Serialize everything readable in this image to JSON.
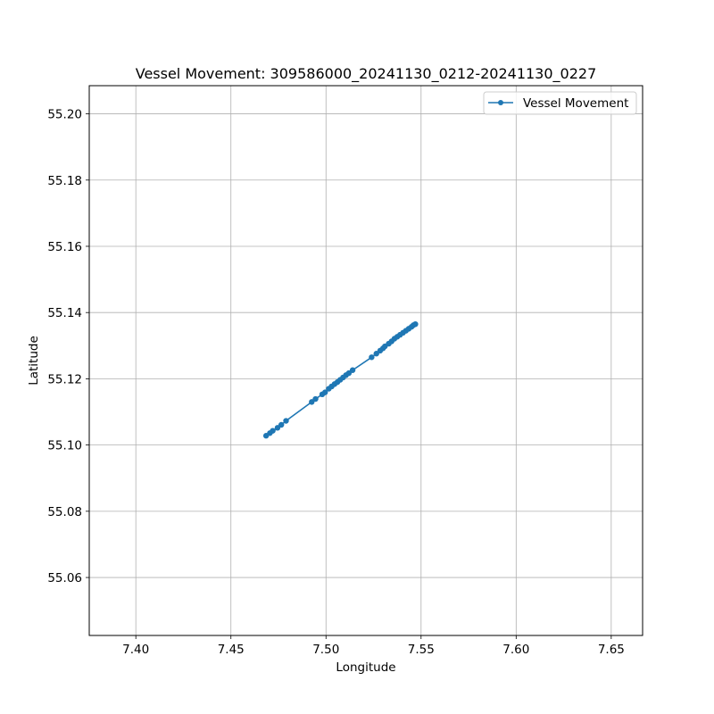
{
  "chart_data": {
    "type": "line",
    "title": "Vessel Movement: 309586000_20241130_0212-20241130_0227",
    "xlabel": "Longitude",
    "ylabel": "Latitude",
    "xlim": [
      7.3755,
      7.6665
    ],
    "ylim": [
      55.0425,
      55.2085
    ],
    "xticks": [
      7.4,
      7.45,
      7.5,
      7.55,
      7.6,
      7.65
    ],
    "xtick_labels": [
      "7.40",
      "7.45",
      "7.50",
      "7.55",
      "7.60",
      "7.65"
    ],
    "yticks": [
      55.06,
      55.08,
      55.1,
      55.12,
      55.14,
      55.16,
      55.18,
      55.2
    ],
    "ytick_labels": [
      "55.06",
      "55.08",
      "55.10",
      "55.12",
      "55.14",
      "55.16",
      "55.18",
      "55.20"
    ],
    "grid": true,
    "legend": {
      "position": "top-right",
      "entries": [
        "Vessel Movement"
      ]
    },
    "color": "#1f77b4",
    "series": [
      {
        "name": "Vessel Movement",
        "x": [
          7.4685,
          7.4705,
          7.472,
          7.4745,
          7.4765,
          7.479,
          7.4925,
          7.4945,
          7.498,
          7.4995,
          7.5015,
          7.503,
          7.5045,
          7.506,
          7.5075,
          7.509,
          7.5105,
          7.512,
          7.514,
          7.524,
          7.5265,
          7.5285,
          7.53,
          7.531,
          7.533,
          7.5345,
          7.536,
          7.5375,
          7.539,
          7.5405,
          7.542,
          7.5435,
          7.545,
          7.546,
          7.547
        ],
        "y": [
          55.1028,
          55.1036,
          55.1043,
          55.1052,
          55.1061,
          55.1073,
          55.113,
          55.1139,
          55.1153,
          55.1159,
          55.117,
          55.1177,
          55.1184,
          55.119,
          55.1197,
          55.1204,
          55.1211,
          55.1217,
          55.1226,
          55.1265,
          55.1276,
          55.1285,
          55.1292,
          55.1298,
          55.1306,
          55.1313,
          55.1321,
          55.1327,
          55.1333,
          55.1339,
          55.1345,
          55.1351,
          55.1357,
          55.1362,
          55.1365
        ]
      }
    ]
  }
}
